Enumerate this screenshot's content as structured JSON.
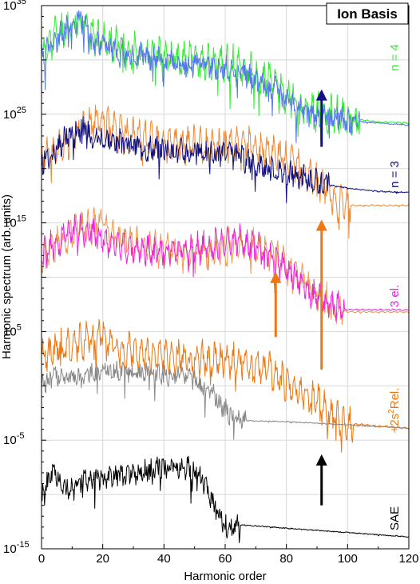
{
  "chart_data": {
    "type": "line",
    "title": "Ion Basis",
    "xlabel": "Harmonic order",
    "ylabel": "Harmonic spectrum (arb. units)",
    "xlim": [
      0,
      120
    ],
    "ylim_log10": [
      -15,
      35
    ],
    "log_y": true,
    "grid": true,
    "x_ticks": [
      0,
      20,
      40,
      60,
      80,
      100,
      120
    ],
    "x_tick_labels": [
      "0",
      "20",
      "40",
      "60",
      "80",
      "100",
      "120"
    ],
    "y_ticks_log10": [
      -15,
      -5,
      5,
      15,
      25,
      35
    ],
    "y_tick_labels": [
      {
        "base": "10",
        "exp": "-15"
      },
      {
        "base": "10",
        "exp": "-5"
      },
      {
        "base": "10",
        "exp": "5"
      },
      {
        "base": "10",
        "exp": "15"
      },
      {
        "base": "10",
        "exp": "25"
      },
      {
        "base": "10",
        "exp": "35"
      }
    ],
    "panel_labels": {
      "n4": "n = 4",
      "n3": "n = 3",
      "el3": "3 el.",
      "rel_main": "+2s",
      "rel_sup": "2",
      "rel_tail": "Rel.",
      "sae": "SAE"
    },
    "series": [
      {
        "id": "n4_green",
        "label_key": "n4",
        "color": "#33ee33",
        "anchors": [
          [
            0,
            30.5
          ],
          [
            5,
            32.5
          ],
          [
            10,
            33
          ],
          [
            13,
            33.6
          ],
          [
            18,
            31.8
          ],
          [
            25,
            31.2
          ],
          [
            35,
            30.6
          ],
          [
            45,
            30.2
          ],
          [
            55,
            29.8
          ],
          [
            65,
            29.5
          ],
          [
            70,
            28.4
          ],
          [
            75,
            28.1
          ],
          [
            82,
            26.4
          ],
          [
            88,
            25.3
          ],
          [
            100,
            24.6
          ],
          [
            110,
            24.3
          ],
          [
            120,
            24.2
          ]
        ],
        "noise": 1.1,
        "osc": 1.0,
        "period": 2.0
      },
      {
        "id": "n4_blue",
        "label_key": "n4",
        "color": "#5577ee",
        "anchors": [
          [
            0,
            30.5
          ],
          [
            5,
            32
          ],
          [
            10,
            33.3
          ],
          [
            13,
            33.8
          ],
          [
            18,
            31.5
          ],
          [
            25,
            30.8
          ],
          [
            35,
            30.2
          ],
          [
            45,
            29.8
          ],
          [
            55,
            29.4
          ],
          [
            65,
            29.0
          ],
          [
            70,
            28
          ],
          [
            75,
            27.6
          ],
          [
            82,
            25.8
          ],
          [
            88,
            25.0
          ],
          [
            100,
            24.4
          ],
          [
            110,
            24.2
          ],
          [
            120,
            24.0
          ]
        ],
        "noise": 1.0,
        "osc": 0.4,
        "period": 2.0
      },
      {
        "id": "n3_orange",
        "label_key": "n3",
        "color": "#ee8833",
        "anchors": [
          [
            0,
            21
          ],
          [
            5,
            21.5
          ],
          [
            10,
            23
          ],
          [
            15,
            24
          ],
          [
            20,
            24.6
          ],
          [
            25,
            23.2
          ],
          [
            35,
            22.6
          ],
          [
            45,
            22.2
          ],
          [
            55,
            22.0
          ],
          [
            65,
            22.2
          ],
          [
            75,
            21.7
          ],
          [
            82,
            20.5
          ],
          [
            88,
            19.4
          ],
          [
            93,
            18.2
          ],
          [
            97,
            16.8
          ],
          [
            100,
            16.6
          ],
          [
            120,
            16.6
          ]
        ],
        "noise": 0.9,
        "osc": 1.1,
        "period": 2.0
      },
      {
        "id": "n3_navy",
        "label_key": "n3",
        "color": "#101080",
        "anchors": [
          [
            0,
            20.5
          ],
          [
            4,
            21.5
          ],
          [
            8,
            23
          ],
          [
            12,
            23.8
          ],
          [
            18,
            23
          ],
          [
            25,
            22.4
          ],
          [
            35,
            21.9
          ],
          [
            45,
            21.6
          ],
          [
            55,
            21.4
          ],
          [
            62,
            21.3
          ],
          [
            70,
            20.4
          ],
          [
            80,
            19.6
          ],
          [
            90,
            18.7
          ],
          [
            100,
            18.2
          ],
          [
            110,
            17.9
          ],
          [
            120,
            17.8
          ]
        ],
        "noise": 1.0,
        "osc": 0.4,
        "period": 2.0
      },
      {
        "id": "el3_orange",
        "label_key": "el3",
        "color": "#ee9955",
        "anchors": [
          [
            0,
            12
          ],
          [
            5,
            13
          ],
          [
            10,
            14.3
          ],
          [
            16,
            14.6
          ],
          [
            20,
            15.2
          ],
          [
            25,
            13.6
          ],
          [
            35,
            12.6
          ],
          [
            45,
            12.2
          ],
          [
            55,
            12.4
          ],
          [
            65,
            13.0
          ],
          [
            72,
            12.6
          ],
          [
            78,
            11.6
          ],
          [
            84,
            10.2
          ],
          [
            90,
            8.6
          ],
          [
            95,
            7.2
          ],
          [
            100,
            6.8
          ],
          [
            120,
            6.8
          ]
        ],
        "noise": 0.9,
        "osc": 1.0,
        "period": 2.0
      },
      {
        "id": "el3_magenta",
        "label_key": "el3",
        "color": "#ee22dd",
        "anchors": [
          [
            0,
            12
          ],
          [
            5,
            13.2
          ],
          [
            10,
            14.2
          ],
          [
            16,
            14.3
          ],
          [
            22,
            13.2
          ],
          [
            30,
            12.6
          ],
          [
            40,
            12.4
          ],
          [
            50,
            12.6
          ],
          [
            58,
            13.0
          ],
          [
            65,
            13.3
          ],
          [
            70,
            12.8
          ],
          [
            76,
            11.6
          ],
          [
            82,
            10.2
          ],
          [
            88,
            8.6
          ],
          [
            95,
            7.3
          ],
          [
            100,
            7.0
          ],
          [
            120,
            7.0
          ]
        ],
        "noise": 0.8,
        "osc": 0.9,
        "period": 2.0
      },
      {
        "id": "rel_orange",
        "label_key": "rel_main",
        "color": "#ee7711",
        "anchors": [
          [
            0,
            2.5
          ],
          [
            5,
            3.5
          ],
          [
            10,
            3.7
          ],
          [
            18,
            4.5
          ],
          [
            20,
            4.8
          ],
          [
            25,
            3.3
          ],
          [
            35,
            2.9
          ],
          [
            45,
            2.6
          ],
          [
            55,
            2.5
          ],
          [
            65,
            2.3
          ],
          [
            72,
            1.8
          ],
          [
            78,
            0.8
          ],
          [
            85,
            -0.6
          ],
          [
            92,
            -1.8
          ],
          [
            98,
            -3.4
          ],
          [
            102,
            -3.5
          ],
          [
            110,
            -3.7
          ],
          [
            120,
            -3.9
          ]
        ],
        "noise": 0.9,
        "osc": 1.1,
        "period": 2.0
      },
      {
        "id": "rel_gray",
        "label_key": "rel_main",
        "color": "#888888",
        "anchors": [
          [
            0,
            0
          ],
          [
            4,
            1
          ],
          [
            8,
            0.5
          ],
          [
            15,
            1
          ],
          [
            20,
            1.5
          ],
          [
            30,
            1.3
          ],
          [
            40,
            1.0
          ],
          [
            48,
            0.8
          ],
          [
            52,
            0.2
          ],
          [
            56,
            -0.8
          ],
          [
            60,
            -2.2
          ],
          [
            63,
            -3.0
          ],
          [
            66,
            -3.2
          ],
          [
            80,
            -3.3
          ],
          [
            100,
            -3.6
          ],
          [
            120,
            -3.9
          ]
        ],
        "noise": 0.8,
        "osc": 0.3,
        "period": 2.0
      },
      {
        "id": "sae_black",
        "label_key": "sae",
        "color": "#000000",
        "anchors": [
          [
            0,
            -10
          ],
          [
            4,
            -8
          ],
          [
            8,
            -9.5
          ],
          [
            14,
            -8.5
          ],
          [
            20,
            -8.6
          ],
          [
            30,
            -8.0
          ],
          [
            40,
            -7.5
          ],
          [
            48,
            -7.5
          ],
          [
            52,
            -8.5
          ],
          [
            55,
            -10
          ],
          [
            58,
            -11.8
          ],
          [
            61,
            -13.3
          ],
          [
            65,
            -12.8
          ],
          [
            80,
            -13.1
          ],
          [
            100,
            -13.5
          ],
          [
            120,
            -13.9
          ]
        ],
        "noise": 0.9,
        "osc": 0.3,
        "period": 2.0
      }
    ],
    "arrows": [
      {
        "x": 91.5,
        "y_from": 22,
        "y_to": 27.3,
        "color": "#101080"
      },
      {
        "x": 91.5,
        "y_from": 1.5,
        "y_to": 15.3,
        "color": "#ee7711"
      },
      {
        "x": 76.5,
        "y_from": 4.5,
        "y_to": 10.5,
        "color": "#ee7711"
      },
      {
        "x": 91.5,
        "y_from": -11,
        "y_to": -6.3,
        "color": "#000000"
      }
    ]
  }
}
